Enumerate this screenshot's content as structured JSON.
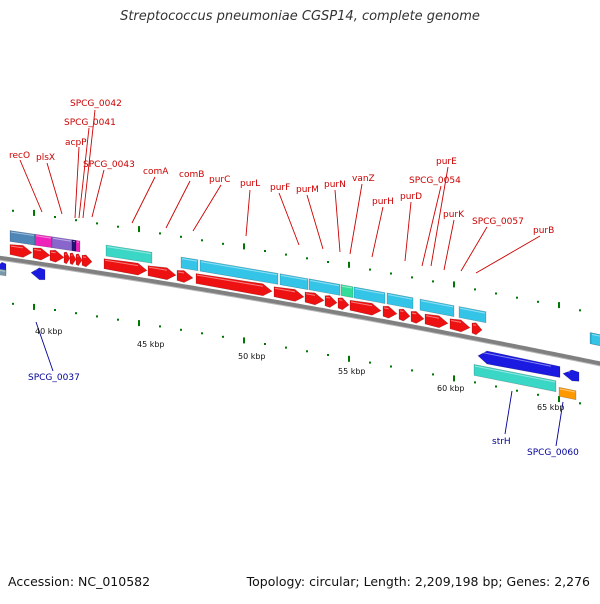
{
  "title": "Streptococcus pneumoniae CGSP14, complete genome",
  "footer": {
    "accession": "Accession: NC_010582",
    "summary": "Topology: circular; Length: 2,209,198 bp; Genes: 2,276"
  },
  "colors": {
    "label_top": "#cc0000",
    "label_bottom": "#000099",
    "backbone": "#808080",
    "tick": "#007700",
    "red_gene": "#ee1111",
    "blue_gene": "#1a1ae0",
    "cyan_feature": "#33c4e8",
    "teal_feature": "#3ad6c6",
    "green_feature": "#33dd99",
    "orange_feature": "#ff9900",
    "magenta_feature": "#ee22bb",
    "violet_feature": "#8866cc",
    "steel_feature": "#4f86b8"
  },
  "scale_labels": [
    "40 kbp",
    "45 kbp",
    "50 kbp",
    "55 kbp",
    "60 kbp",
    "65 kbp"
  ],
  "top_labels": [
    "recO",
    "plsX",
    "acpP",
    "SPCG_0041",
    "SPCG_0042",
    "SPCG_0043",
    "comA",
    "comB",
    "purC",
    "purL",
    "purF",
    "purM",
    "purN",
    "vanZ",
    "purH",
    "purD",
    "SPCG_0054",
    "purE",
    "purK",
    "SPCG_0057",
    "purB"
  ],
  "bottom_labels": [
    "SPCG_0037",
    "strH",
    "SPCG_0060"
  ]
}
